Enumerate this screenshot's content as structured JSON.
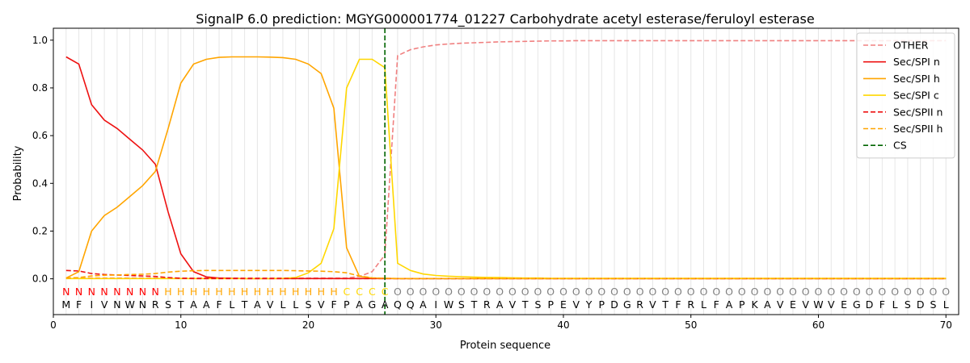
{
  "chart_data": {
    "type": "line",
    "title": "SignalP 6.0 prediction: MGYG000001774_01227 Carbohydrate acetyl esterase/feruloyl esterase",
    "xlabel": "Protein sequence",
    "ylabel": "Probability",
    "xlim": [
      0,
      71
    ],
    "ylim": [
      -0.15,
      1.05
    ],
    "xticks": [
      0,
      10,
      20,
      30,
      40,
      50,
      60,
      70
    ],
    "yticks": [
      0.0,
      0.2,
      0.4,
      0.6,
      0.8,
      1.0
    ],
    "grid": "vertical lines at each residue",
    "legend_position": "top-right",
    "sequence": [
      "M",
      "F",
      "I",
      "V",
      "N",
      "W",
      "N",
      "R",
      "S",
      "T",
      "A",
      "A",
      "F",
      "L",
      "T",
      "A",
      "V",
      "L",
      "L",
      "S",
      "V",
      "F",
      "P",
      "A",
      "G",
      "A",
      "Q",
      "Q",
      "A",
      "I",
      "W",
      "S",
      "T",
      "R",
      "A",
      "V",
      "T",
      "S",
      "P",
      "E",
      "V",
      "Y",
      "P",
      "D",
      "G",
      "R",
      "V",
      "T",
      "F",
      "R",
      "L",
      "F",
      "A",
      "P",
      "K",
      "A",
      "V",
      "E",
      "V",
      "W",
      "V",
      "E",
      "G",
      "D",
      "F",
      "L",
      "S",
      "D",
      "S",
      "L"
    ],
    "labels": [
      "N",
      "N",
      "N",
      "N",
      "N",
      "N",
      "N",
      "N",
      "H",
      "H",
      "H",
      "H",
      "H",
      "H",
      "H",
      "H",
      "H",
      "H",
      "H",
      "H",
      "H",
      "H",
      "C",
      "C",
      "C",
      "C",
      "O",
      "O",
      "O",
      "O",
      "O",
      "O",
      "O",
      "O",
      "O",
      "O",
      "O",
      "O",
      "O",
      "O",
      "O",
      "O",
      "O",
      "O",
      "O",
      "O",
      "O",
      "O",
      "O",
      "O",
      "O",
      "O",
      "O",
      "O",
      "O",
      "O",
      "O",
      "O",
      "O",
      "O",
      "O",
      "O",
      "O",
      "O",
      "O",
      "O",
      "O",
      "O",
      "O",
      "O"
    ],
    "label_colors": {
      "N": "#ff0000",
      "H": "#ffa500",
      "C": "#ffd700",
      "O": "#808080"
    },
    "series": [
      {
        "name": "OTHER",
        "color": "#f08080",
        "dash": "dashed",
        "values": [
          0.002,
          0.003,
          0.003,
          0.003,
          0.003,
          0.003,
          0.003,
          0.003,
          0.003,
          0.003,
          0.003,
          0.003,
          0.003,
          0.003,
          0.003,
          0.003,
          0.003,
          0.003,
          0.003,
          0.003,
          0.003,
          0.003,
          0.003,
          0.01,
          0.03,
          0.1,
          0.935,
          0.96,
          0.972,
          0.98,
          0.984,
          0.987,
          0.989,
          0.991,
          0.993,
          0.994,
          0.995,
          0.996,
          0.997,
          0.997,
          0.998,
          0.998,
          0.998,
          0.998,
          0.998,
          0.998,
          0.998,
          0.998,
          0.998,
          0.998,
          0.998,
          0.998,
          0.998,
          0.998,
          0.998,
          0.998,
          0.998,
          0.998,
          0.998,
          0.998,
          0.998,
          0.998,
          0.998,
          0.998,
          0.998,
          0.998,
          0.998,
          0.998,
          0.998,
          0.998
        ]
      },
      {
        "name": "Sec/SPI n",
        "color": "#ee1111",
        "dash": "solid",
        "values": [
          0.93,
          0.9,
          0.73,
          0.665,
          0.63,
          0.585,
          0.54,
          0.48,
          0.28,
          0.105,
          0.03,
          0.008,
          0.003,
          0.002,
          0.001,
          0.001,
          0.001,
          0.001,
          0.001,
          0.001,
          0.001,
          0.001,
          0.001,
          0.001,
          0.001,
          0.001,
          0.001,
          0.001,
          0.001,
          0.001,
          0.001,
          0.001,
          0.001,
          0.001,
          0.001,
          0.001,
          0.001,
          0.001,
          0.001,
          0.001,
          0.001,
          0.001,
          0.001,
          0.001,
          0.001,
          0.001,
          0.001,
          0.001,
          0.001,
          0.001,
          0.001,
          0.001,
          0.001,
          0.001,
          0.001,
          0.001,
          0.001,
          0.001,
          0.001,
          0.001,
          0.001,
          0.001,
          0.001,
          0.001,
          0.001,
          0.001,
          0.001,
          0.001,
          0.001,
          0.001
        ]
      },
      {
        "name": "Sec/SPI h",
        "color": "#ffa500",
        "dash": "solid",
        "values": [
          0.003,
          0.03,
          0.2,
          0.265,
          0.3,
          0.345,
          0.39,
          0.45,
          0.63,
          0.82,
          0.9,
          0.92,
          0.928,
          0.93,
          0.93,
          0.93,
          0.929,
          0.927,
          0.92,
          0.9,
          0.86,
          0.715,
          0.13,
          0.01,
          0.003,
          0.002,
          0.001,
          0.001,
          0.001,
          0.001,
          0.001,
          0.001,
          0.001,
          0.001,
          0.001,
          0.001,
          0.001,
          0.001,
          0.001,
          0.001,
          0.001,
          0.001,
          0.001,
          0.001,
          0.001,
          0.001,
          0.001,
          0.001,
          0.001,
          0.001,
          0.001,
          0.001,
          0.001,
          0.001,
          0.001,
          0.001,
          0.001,
          0.001,
          0.001,
          0.001,
          0.001,
          0.001,
          0.001,
          0.001,
          0.001,
          0.001,
          0.001,
          0.001,
          0.001,
          0.001
        ]
      },
      {
        "name": "Sec/SPI c",
        "color": "#ffd700",
        "dash": "solid",
        "values": [
          0.001,
          0.001,
          0.001,
          0.001,
          0.001,
          0.001,
          0.001,
          0.001,
          0.001,
          0.001,
          0.001,
          0.001,
          0.001,
          0.001,
          0.001,
          0.001,
          0.001,
          0.002,
          0.005,
          0.025,
          0.065,
          0.21,
          0.8,
          0.92,
          0.92,
          0.885,
          0.065,
          0.035,
          0.02,
          0.014,
          0.011,
          0.009,
          0.007,
          0.006,
          0.005,
          0.004,
          0.003,
          0.003,
          0.002,
          0.002,
          0.002,
          0.002,
          0.002,
          0.002,
          0.002,
          0.002,
          0.002,
          0.002,
          0.002,
          0.002,
          0.002,
          0.002,
          0.002,
          0.002,
          0.002,
          0.002,
          0.002,
          0.002,
          0.002,
          0.002,
          0.002,
          0.002,
          0.002,
          0.002,
          0.002,
          0.002,
          0.002,
          0.002,
          0.002,
          0.002
        ]
      },
      {
        "name": "Sec/SPII n",
        "color": "#ee1111",
        "dash": "dashed",
        "values": [
          0.035,
          0.033,
          0.022,
          0.018,
          0.016,
          0.014,
          0.012,
          0.01,
          0.005,
          0.002,
          0.001,
          0.001,
          0.001,
          0.001,
          0.001,
          0.001,
          0.001,
          0.001,
          0.001,
          0.001,
          0.001,
          0.001,
          0.001,
          0.001,
          0.001,
          0.001,
          0.001,
          0.001,
          0.001,
          0.001,
          0.001,
          0.001,
          0.001,
          0.001,
          0.001,
          0.001,
          0.001,
          0.001,
          0.001,
          0.001,
          0.001,
          0.001,
          0.001,
          0.001,
          0.001,
          0.001,
          0.001,
          0.001,
          0.001,
          0.001,
          0.001,
          0.001,
          0.001,
          0.001,
          0.001,
          0.001,
          0.001,
          0.001,
          0.001,
          0.001,
          0.001,
          0.001,
          0.001,
          0.001,
          0.001,
          0.001,
          0.001,
          0.001,
          0.001,
          0.001
        ]
      },
      {
        "name": "Sec/SPII h",
        "color": "#ffa500",
        "dash": "dashed",
        "values": [
          0.003,
          0.005,
          0.012,
          0.015,
          0.016,
          0.018,
          0.019,
          0.022,
          0.028,
          0.032,
          0.034,
          0.035,
          0.035,
          0.035,
          0.035,
          0.035,
          0.035,
          0.035,
          0.034,
          0.033,
          0.032,
          0.03,
          0.025,
          0.012,
          0.004,
          0.002,
          0.001,
          0.001,
          0.001,
          0.001,
          0.001,
          0.001,
          0.001,
          0.001,
          0.001,
          0.001,
          0.001,
          0.001,
          0.001,
          0.001,
          0.001,
          0.001,
          0.001,
          0.001,
          0.001,
          0.001,
          0.001,
          0.001,
          0.001,
          0.001,
          0.001,
          0.001,
          0.001,
          0.001,
          0.001,
          0.001,
          0.001,
          0.001,
          0.001,
          0.001,
          0.001,
          0.001,
          0.001,
          0.001,
          0.001,
          0.001,
          0.001,
          0.001,
          0.001,
          0.001
        ]
      }
    ],
    "cleavage_site": {
      "name": "CS",
      "x": 26,
      "color": "#006400",
      "dash": "dashed"
    }
  }
}
